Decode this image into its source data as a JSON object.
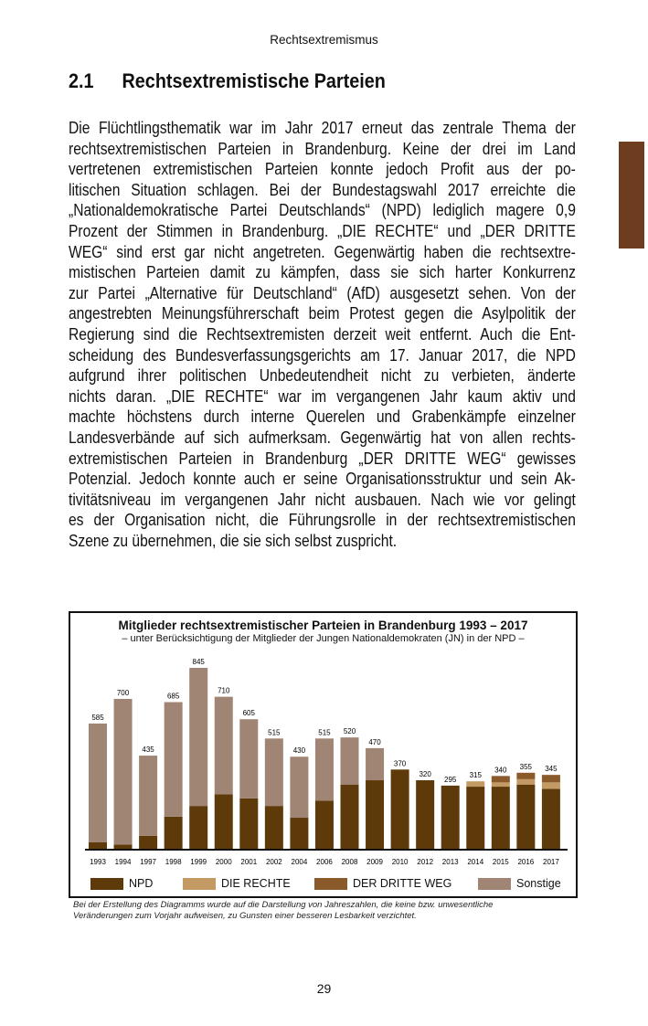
{
  "header": {
    "running_title": "Rechtsextremismus",
    "section_number": "2.1",
    "section_title": "Rechtsextremistische Parteien"
  },
  "body_lines": [
    "Die Flüchtlingsthematik war im Jahr 2017 erneut das zentrale Thema der",
    "rechtsextremistischen Parteien in Brandenburg. Keine der drei im Land",
    "vertretenen extremistischen Parteien konnte jedoch Profit aus der po-",
    "litischen Situation schlagen. Bei der Bundestagswahl 2017 erreichte die",
    "„Nationaldemokratische Partei Deutschlands“ (NPD) lediglich magere 0,9",
    "Prozent der Stimmen in Brandenburg. „DIE RECHTE“ und „DER DRITTE",
    "WEG“ sind erst gar nicht angetreten. Gegenwärtig haben die rechtsextre-",
    "mistischen Parteien damit zu kämpfen, dass sie sich harter Konkurrenz",
    "zur Partei  „Alternative für Deutschland“ (AfD) ausgesetzt sehen. Von der",
    "angestrebten Meinungsführerschaft beim Protest gegen die Asylpolitik der",
    "Regierung sind die Rechtsextremisten derzeit weit entfernt. Auch die Ent-",
    "scheidung des Bundesverfassungsgerichts am 17. Januar 2017, die NPD",
    "aufgrund ihrer politischen Unbedeutendheit nicht zu verbieten, änderte",
    "nichts daran. „DIE RECHTE“ war im vergangenen Jahr kaum aktiv und",
    "machte höchstens durch interne Querelen und Grabenkämpfe einzelner",
    "Landesverbände auf sich aufmerksam. Gegenwärtig hat von allen rechts-",
    "extremistischen Parteien in Brandenburg „DER DRITTE WEG“ gewisses",
    "Potenzial. Jedoch konnte auch er seine Organisationsstruktur und sein Ak-",
    "tivitätsniveau im vergangenen Jahr nicht ausbauen. Nach wie vor gelingt",
    "es der Organisation nicht, die Führungsrolle in der rechtsextremistischen",
    "Szene zu übernehmen, die sie sich selbst zuspricht."
  ],
  "chart_data": {
    "type": "bar",
    "stacked": true,
    "title": "Mitglieder rechtsextremistischer Parteien in Brandenburg 1993 – 2017",
    "subtitle": "– unter Berücksichtigung der Mitglieder der Jungen Nationaldemokraten (JN) in der NPD –",
    "categories": [
      "1993",
      "1994",
      "1997",
      "1998",
      "1999",
      "2000",
      "2001",
      "2002",
      "2004",
      "2006",
      "2008",
      "2009",
      "2010",
      "2012",
      "2013",
      "2014",
      "2015",
      "2016",
      "2017"
    ],
    "totals": [
      585,
      700,
      435,
      685,
      845,
      710,
      605,
      515,
      430,
      515,
      520,
      470,
      370,
      320,
      295,
      315,
      340,
      355,
      345
    ],
    "series": [
      {
        "name": "NPD",
        "color": "#5e3a0b",
        "values": [
          30,
          20,
          60,
          150,
          200,
          255,
          235,
          200,
          145,
          225,
          300,
          320,
          370,
          320,
          295,
          290,
          290,
          300,
          280
        ]
      },
      {
        "name": "DIE RECHTE",
        "color": "#c49a64",
        "values": [
          0,
          0,
          0,
          0,
          0,
          0,
          0,
          0,
          0,
          0,
          0,
          0,
          0,
          0,
          0,
          25,
          20,
          25,
          30
        ]
      },
      {
        "name": "DER DRITTE WEG",
        "color": "#8b5a2b",
        "values": [
          0,
          0,
          0,
          0,
          0,
          0,
          0,
          0,
          0,
          0,
          0,
          0,
          0,
          0,
          0,
          0,
          30,
          30,
          35
        ]
      },
      {
        "name": "Sonstige",
        "color": "#a08574",
        "values": [
          555,
          680,
          375,
          535,
          645,
          455,
          370,
          315,
          285,
          290,
          220,
          150,
          0,
          0,
          0,
          0,
          0,
          0,
          0
        ]
      }
    ],
    "ylim": [
      0,
      900
    ],
    "grid": false,
    "legend": "bottom"
  },
  "footnote": [
    "Bei der Erstellung des Diagramms wurde auf die Darstellung von Jahreszahlen, die keine bzw. unwesentliche",
    "Veränderungen zum Vorjahr aufweisen, zu Gunsten einer besseren Lesbarkeit verzichtet."
  ],
  "page_number": "29",
  "colors": {
    "tab": "#6e3c1e"
  }
}
